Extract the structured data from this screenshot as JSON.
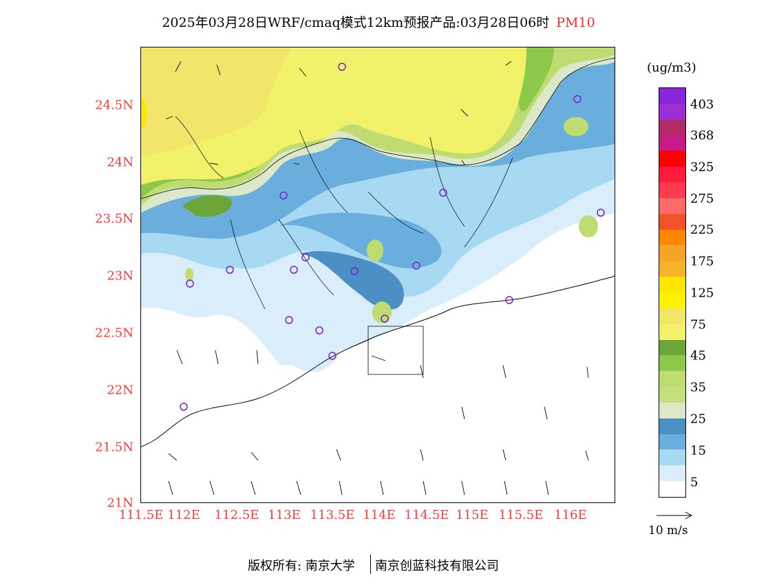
{
  "title": {
    "main": "2025年03月28日WRF/cmaq模式12km预报产品:03月28日06时",
    "pollutant": "PM10"
  },
  "map": {
    "y_labels": [
      "24.5N",
      "24N",
      "23.5N",
      "23N",
      "22.5N",
      "22N",
      "21.5N",
      "21N"
    ],
    "x_labels": [
      "111.5E",
      "112E",
      "112.5E",
      "113E",
      "113.5E",
      "114E",
      "114.5E",
      "115E",
      "115.5E",
      "116E"
    ]
  },
  "legend": {
    "units": "(ug/m3)",
    "labels": [
      "403",
      "368",
      "325",
      "275",
      "225",
      "175",
      "125",
      "75",
      "45",
      "35",
      "25",
      "15",
      "5"
    ],
    "colors": [
      "#8a26d9",
      "#9c2fd2",
      "#b02a68",
      "#c81a88",
      "#ff0000",
      "#ff1a40",
      "#ff3b52",
      "#ff6a6a",
      "#f0522a",
      "#ff8800",
      "#f5a427",
      "#f8b22a",
      "#ffe600",
      "#fff200",
      "#f2e66a",
      "#f2f26a",
      "#6da638",
      "#8cc84a",
      "#bedc70",
      "#c4e07e",
      "#dce8c8",
      "#4b8fc4",
      "#6aaedd",
      "#a8d9f2",
      "#d9eefa",
      "#ffffff"
    ],
    "wind_ref": "10 m/s"
  },
  "footer": {
    "left": "版权所有: 南京大学",
    "right": "南京创蓝科技有限公司"
  }
}
